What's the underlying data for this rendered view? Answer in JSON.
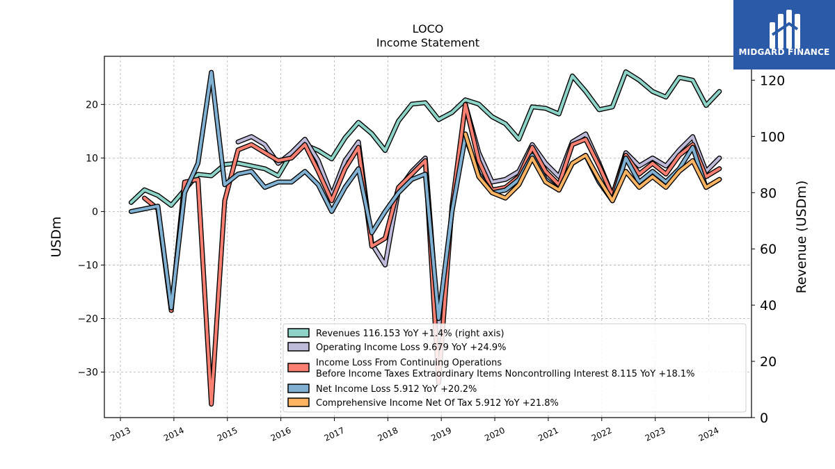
{
  "chart_data": {
    "type": "line",
    "title": "LOCO",
    "subtitle": "Income Statement",
    "ylabel_left": "USDm",
    "ylabel_right": "Revenue (USDm)",
    "ylim_left": [
      -38.5,
      29.0
    ],
    "ylim_right": [
      0,
      128.5
    ],
    "yticks_left": [
      "20",
      "10",
      "0",
      "−10",
      "−20",
      "−30"
    ],
    "yticks_left_values": [
      20,
      10,
      0,
      -10,
      -20,
      -30
    ],
    "yticks_right": [
      "120",
      "100",
      "80",
      "60",
      "40",
      "20",
      "0"
    ],
    "yticks_right_values": [
      120,
      100,
      80,
      60,
      40,
      20,
      0
    ],
    "xticks": [
      "2013",
      "2014",
      "2015",
      "2016",
      "2017",
      "2018",
      "2019",
      "2020",
      "2021",
      "2022",
      "2023",
      "2024"
    ],
    "xlim": [
      2012.7,
      2024.8
    ],
    "grid": true,
    "legend_position": "lower-right",
    "series": [
      {
        "name": "Revenues",
        "legend": "Revenues  116.153 YoY +1.4% (right axis)",
        "axis": "right",
        "color": "#8dd3c7",
        "x": [
          2013.2,
          2013.45,
          2013.7,
          2013.95,
          2014.2,
          2014.45,
          2014.7,
          2014.95,
          2015.2,
          2015.45,
          2015.7,
          2015.95,
          2016.2,
          2016.45,
          2016.7,
          2016.95,
          2017.2,
          2017.45,
          2017.7,
          2017.95,
          2018.2,
          2018.45,
          2018.7,
          2018.95,
          2019.2,
          2019.45,
          2019.7,
          2019.95,
          2020.2,
          2020.45,
          2020.7,
          2020.95,
          2021.2,
          2021.45,
          2021.7,
          2021.95,
          2022.2,
          2022.45,
          2022.7,
          2022.95,
          2023.2,
          2023.45,
          2023.7,
          2023.95,
          2024.2
        ],
        "values": [
          76.5,
          81,
          79,
          75.5,
          81,
          86.5,
          86,
          90,
          90.5,
          89.5,
          88.5,
          86,
          94,
          97,
          95,
          92,
          99.5,
          105,
          101,
          95,
          105.5,
          111.5,
          112,
          106,
          108.5,
          113,
          111.5,
          107,
          104.5,
          99,
          110.5,
          110,
          108,
          121.5,
          116,
          109.5,
          110.5,
          123,
          120,
          116,
          114,
          121,
          120,
          111,
          116
        ]
      },
      {
        "name": "Operating Income Loss",
        "legend": "Operating Income Loss  9.679 YoY +24.9%",
        "axis": "left",
        "color": "#bebada",
        "x": [
          2015.2,
          2015.45,
          2015.7,
          2015.95,
          2016.2,
          2016.45,
          2016.7,
          2016.95,
          2017.2,
          2017.45,
          2017.7,
          2017.95,
          2018.2,
          2018.45,
          2018.7,
          2018.95,
          2019.2,
          2019.45,
          2019.7,
          2019.95,
          2020.2,
          2020.45,
          2020.7,
          2020.95,
          2021.2,
          2021.45,
          2021.7,
          2021.95,
          2022.2,
          2022.45,
          2022.7,
          2022.95,
          2023.2,
          2023.45,
          2023.7,
          2023.95,
          2024.2
        ],
        "values": [
          13,
          14,
          12.5,
          9,
          11,
          13.5,
          9.5,
          3,
          9.5,
          13,
          -6,
          -10,
          4,
          7.5,
          10,
          -22,
          0,
          20,
          11,
          5.5,
          6,
          7.5,
          12.5,
          9,
          6.5,
          13,
          14.5,
          9,
          3,
          11,
          8.5,
          10,
          8.5,
          11.5,
          14,
          7.5,
          10
        ]
      },
      {
        "name": "Income Loss From Continuing Operations Before Income Taxes Extraordinary Items Noncontrolling Interest",
        "legend": "Income Loss From Continuing Operations",
        "legend2": "Before Income Taxes Extraordinary Items Noncontrolling Interest  8.115 YoY +18.1%",
        "axis": "left",
        "color": "#fb8072",
        "x": [
          2013.45,
          2013.7,
          2013.95,
          2014.2,
          2014.45,
          2014.7,
          2014.95,
          2015.2,
          2015.45,
          2015.7,
          2015.95,
          2016.2,
          2016.45,
          2016.7,
          2016.95,
          2017.2,
          2017.45,
          2017.7,
          2017.95,
          2018.2,
          2018.45,
          2018.7,
          2018.95,
          2019.2,
          2019.45,
          2019.7,
          2019.95,
          2020.2,
          2020.45,
          2020.7,
          2020.95,
          2021.2,
          2021.45,
          2021.7,
          2021.95,
          2022.2,
          2022.45,
          2022.7,
          2022.95,
          2023.2,
          2023.45,
          2023.7,
          2023.95,
          2024.2
        ],
        "values": [
          2.5,
          0.5,
          -18.5,
          5.5,
          6,
          -36,
          2,
          11.5,
          12.5,
          11,
          9.5,
          10,
          12.5,
          7.5,
          2,
          8,
          12,
          -6.5,
          -5,
          4.5,
          7,
          9.5,
          -32,
          1,
          20,
          9.5,
          4,
          4.5,
          6.5,
          12,
          7.5,
          5,
          12.5,
          13.5,
          8.5,
          3,
          10.5,
          7,
          9,
          7,
          10.5,
          12.5,
          6.5,
          8
        ]
      },
      {
        "name": "Net Income Loss",
        "legend": "Net Income Loss  5.912 YoY +20.2%",
        "axis": "left",
        "color": "#80b1d3",
        "x": [
          2013.2,
          2013.45,
          2013.7,
          2013.95,
          2014.2,
          2014.45,
          2014.7,
          2014.95,
          2015.2,
          2015.45,
          2015.7,
          2015.95,
          2016.2,
          2016.45,
          2016.7,
          2016.95,
          2017.2,
          2017.45,
          2017.7,
          2017.95,
          2018.2,
          2018.45,
          2018.7,
          2018.95,
          2019.2,
          2019.45,
          2019.7,
          2019.95,
          2020.2,
          2020.45,
          2020.7,
          2020.95,
          2021.2,
          2021.45,
          2021.7,
          2021.95,
          2022.2,
          2022.45,
          2022.7,
          2022.95,
          2023.2,
          2023.45,
          2023.7,
          2023.95,
          2024.2
        ],
        "values": [
          0,
          0.5,
          1,
          -18,
          3.5,
          9,
          26,
          5,
          7,
          7.5,
          4.5,
          5.5,
          5.5,
          7.5,
          5,
          0,
          4.5,
          8,
          -4,
          0,
          3.5,
          6,
          7,
          -20,
          0,
          14,
          7,
          3.5,
          4,
          6,
          10.5,
          6,
          4,
          9,
          10.5,
          5.5,
          2,
          10,
          5.5,
          7.5,
          5.5,
          8,
          12,
          4.5,
          6
        ]
      },
      {
        "name": "Comprehensive Income Net Of Tax",
        "legend": "Comprehensive Income Net Of Tax  5.912 YoY +21.8%",
        "axis": "left",
        "color": "#fdb462",
        "x": [
          2019.45,
          2019.7,
          2019.95,
          2020.2,
          2020.45,
          2020.7,
          2020.95,
          2021.2,
          2021.45,
          2021.7,
          2021.95,
          2022.2,
          2022.45,
          2022.7,
          2022.95,
          2023.2,
          2023.45,
          2023.7,
          2023.95,
          2024.2
        ],
        "values": [
          14.5,
          6.5,
          3.5,
          2.5,
          5,
          10,
          5.5,
          4,
          9,
          10.5,
          6,
          2,
          7.5,
          4.5,
          6.5,
          4.5,
          7.5,
          9.5,
          4.5,
          6
        ]
      }
    ]
  },
  "branding": {
    "logo_text": "MIDGARD FINANCE",
    "logo_bg": "#2b5aa8"
  }
}
